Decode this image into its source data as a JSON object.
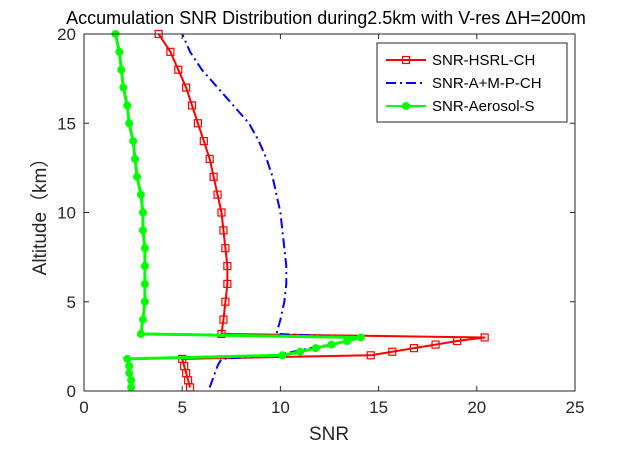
{
  "chart_data": {
    "type": "line",
    "title": "Accumulation SNR Distribution during2.5km with V-res ΔH=200m",
    "xlabel": "SNR",
    "ylabel": "Altitude（km）",
    "xlim": [
      0,
      25
    ],
    "ylim": [
      0,
      20
    ],
    "xticks": [
      "0",
      "5",
      "10",
      "15",
      "20",
      "25"
    ],
    "yticks": [
      "0",
      "5",
      "10",
      "15",
      "20"
    ],
    "grid": false,
    "legend_position": "top-right",
    "series": [
      {
        "name": "SNR-HSRL-CH",
        "color": "#ff0000",
        "style": "solid",
        "marker": "square",
        "points": [
          [
            5.4,
            0.2
          ],
          [
            5.3,
            0.6
          ],
          [
            5.2,
            1.0
          ],
          [
            5.1,
            1.4
          ],
          [
            5.0,
            1.8
          ],
          [
            14.6,
            2.0
          ],
          [
            15.7,
            2.2
          ],
          [
            16.8,
            2.4
          ],
          [
            17.9,
            2.6
          ],
          [
            19.0,
            2.8
          ],
          [
            20.4,
            3.0
          ],
          [
            7.0,
            3.2
          ],
          [
            7.1,
            4.0
          ],
          [
            7.2,
            5.0
          ],
          [
            7.3,
            6.0
          ],
          [
            7.3,
            7.0
          ],
          [
            7.2,
            8.0
          ],
          [
            7.1,
            9.0
          ],
          [
            7.0,
            10.0
          ],
          [
            6.8,
            11.0
          ],
          [
            6.6,
            12.0
          ],
          [
            6.4,
            13.0
          ],
          [
            6.1,
            14.0
          ],
          [
            5.8,
            15.0
          ],
          [
            5.5,
            16.0
          ],
          [
            5.2,
            17.0
          ],
          [
            4.8,
            18.0
          ],
          [
            4.4,
            19.0
          ],
          [
            3.8,
            20.0
          ]
        ]
      },
      {
        "name": "SNR-A+M-P-CH",
        "color": "#0000ff",
        "style": "dashdot",
        "marker": "none",
        "points": [
          [
            6.4,
            0.2
          ],
          [
            6.6,
            0.8
          ],
          [
            6.8,
            1.4
          ],
          [
            7.0,
            1.8
          ],
          [
            9.8,
            2.0
          ],
          [
            11.5,
            2.4
          ],
          [
            13.5,
            2.8
          ],
          [
            14.0,
            3.0
          ],
          [
            9.8,
            3.2
          ],
          [
            10.0,
            4.0
          ],
          [
            10.2,
            5.0
          ],
          [
            10.3,
            6.0
          ],
          [
            10.3,
            7.0
          ],
          [
            10.2,
            8.0
          ],
          [
            10.1,
            9.0
          ],
          [
            10.0,
            10.0
          ],
          [
            9.8,
            11.0
          ],
          [
            9.6,
            12.0
          ],
          [
            9.3,
            13.0
          ],
          [
            8.9,
            14.0
          ],
          [
            8.4,
            15.0
          ],
          [
            7.6,
            16.0
          ],
          [
            6.8,
            17.0
          ],
          [
            6.0,
            18.0
          ],
          [
            5.4,
            19.0
          ],
          [
            5.0,
            20.0
          ]
        ]
      },
      {
        "name": "SNR-Aerosol-S",
        "color": "#00ff00",
        "style": "solid",
        "marker": "circle",
        "points": [
          [
            2.4,
            0.2
          ],
          [
            2.4,
            0.6
          ],
          [
            2.3,
            1.0
          ],
          [
            2.3,
            1.4
          ],
          [
            2.2,
            1.8
          ],
          [
            10.1,
            2.0
          ],
          [
            11.0,
            2.2
          ],
          [
            11.8,
            2.4
          ],
          [
            12.6,
            2.6
          ],
          [
            13.4,
            2.8
          ],
          [
            14.1,
            3.0
          ],
          [
            2.9,
            3.2
          ],
          [
            3.0,
            4.0
          ],
          [
            3.1,
            5.0
          ],
          [
            3.1,
            6.0
          ],
          [
            3.1,
            7.0
          ],
          [
            3.1,
            8.0
          ],
          [
            3.0,
            9.0
          ],
          [
            3.0,
            10.0
          ],
          [
            2.9,
            11.0
          ],
          [
            2.7,
            12.0
          ],
          [
            2.6,
            13.0
          ],
          [
            2.5,
            14.0
          ],
          [
            2.3,
            15.0
          ],
          [
            2.2,
            16.0
          ],
          [
            2.0,
            17.0
          ],
          [
            1.9,
            18.0
          ],
          [
            1.8,
            19.0
          ],
          [
            1.6,
            20.0
          ]
        ]
      }
    ]
  }
}
